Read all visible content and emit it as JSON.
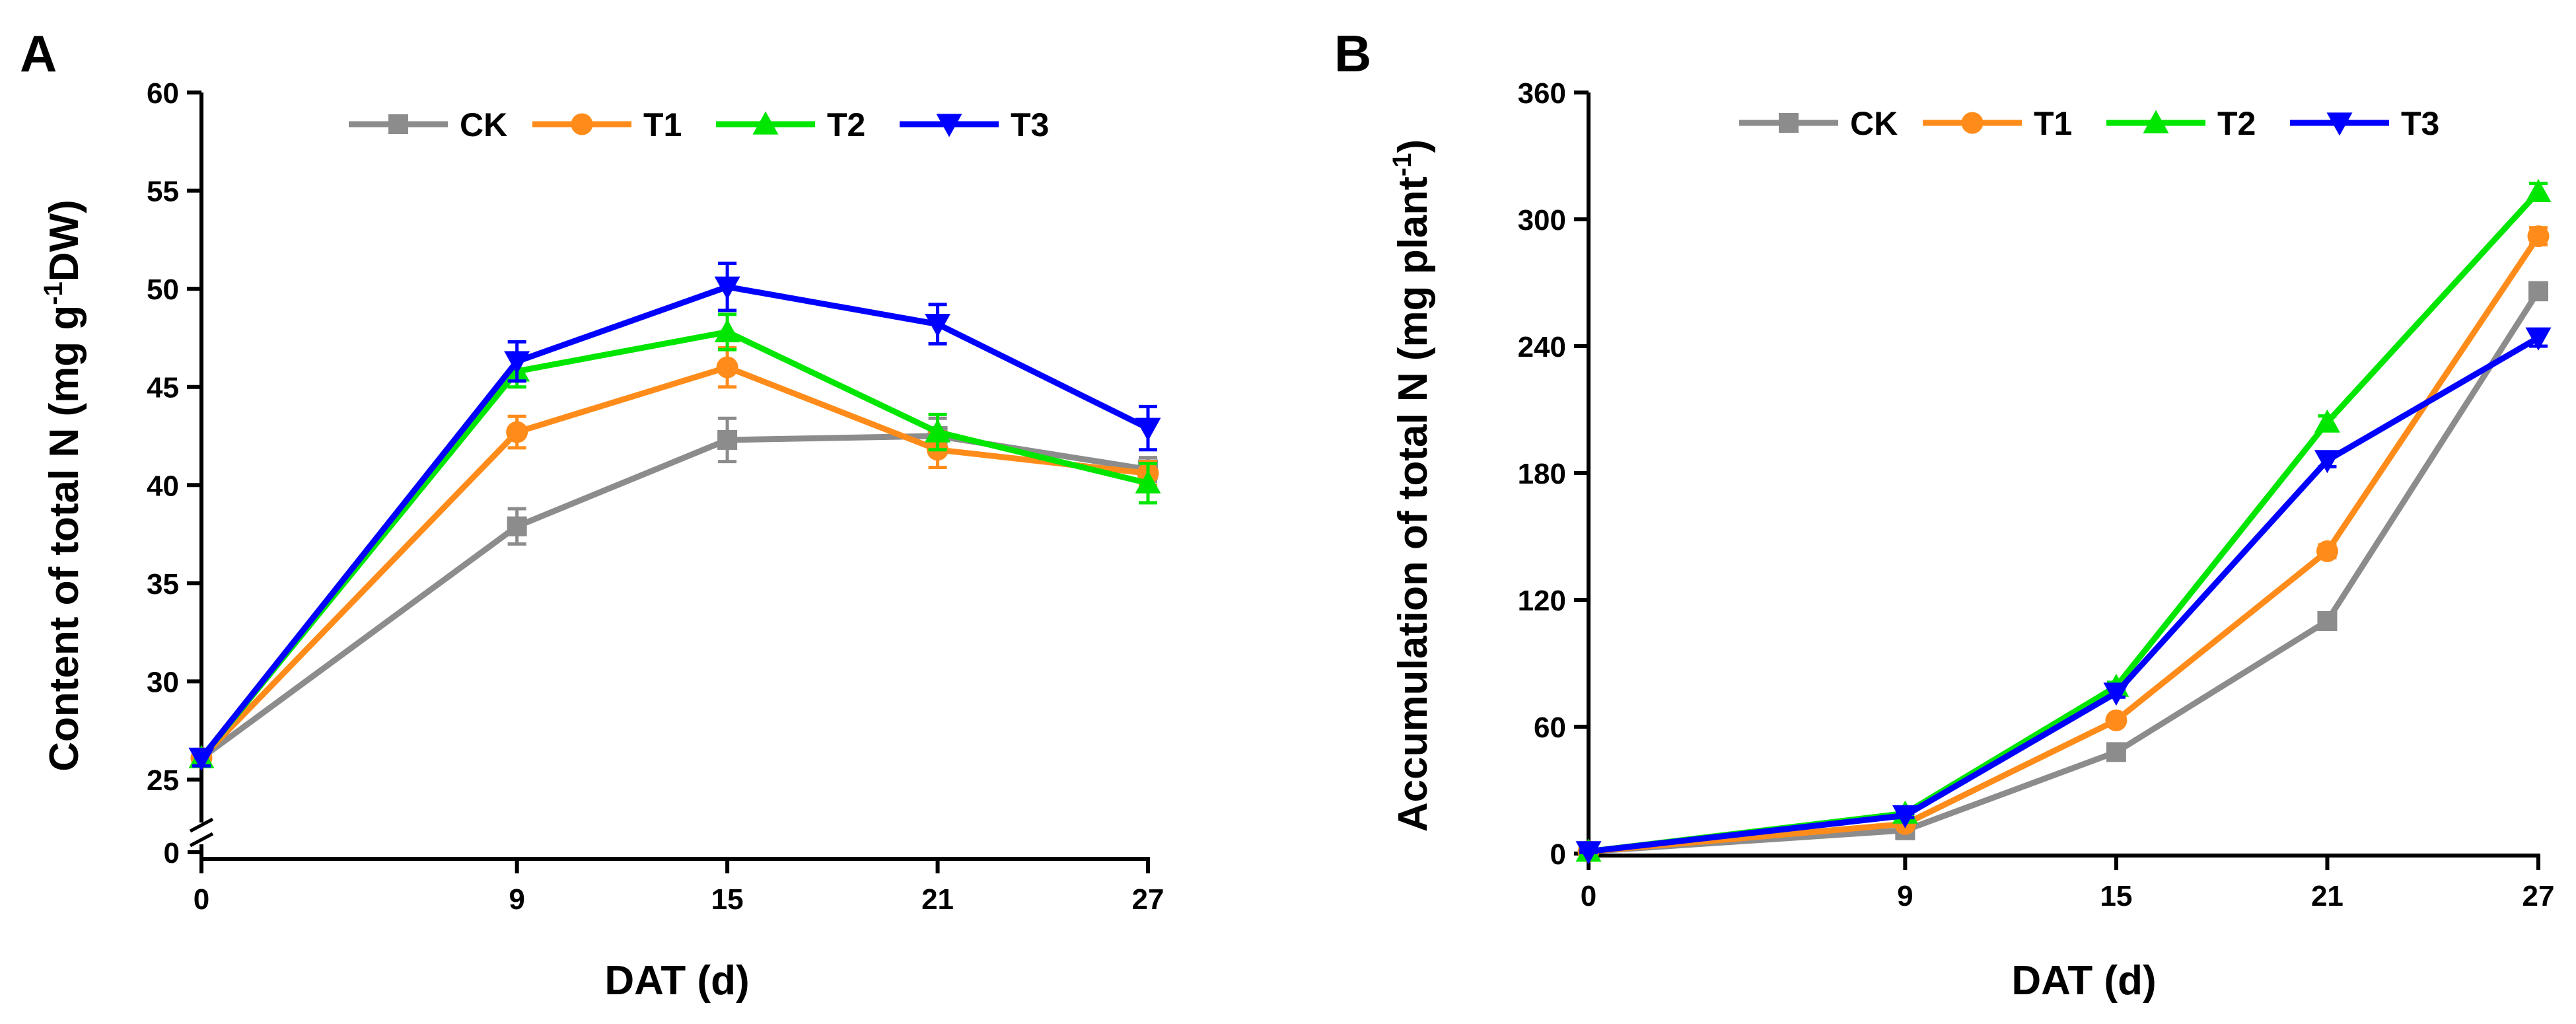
{
  "chart_data": [
    {
      "panel": "A",
      "type": "line",
      "x": [
        0,
        9,
        15,
        21,
        27
      ],
      "xticks": [
        "0",
        "9",
        "15",
        "21",
        "27"
      ],
      "xlim": [
        0,
        27
      ],
      "ylim": [
        25,
        60
      ],
      "yticks": [
        25,
        30,
        35,
        40,
        45,
        50,
        55,
        60
      ],
      "ytick_labels": [
        "25",
        "30",
        "35",
        "40",
        "45",
        "50",
        "55",
        "60"
      ],
      "axis_break": true,
      "ybreak_label": "0",
      "xlabel": "DAT (d)",
      "ylabel": {
        "pre": "Content of total N (mg g",
        "sup": "-1",
        "post": "DW)"
      },
      "legend_position": "top",
      "series": [
        {
          "name": "CK",
          "color": "#8c8c8c",
          "marker": "square",
          "values": [
            26.1,
            37.9,
            42.3,
            42.5,
            40.8
          ],
          "errors": [
            0.4,
            0.9,
            1.1,
            0.9,
            0.6
          ]
        },
        {
          "name": "T1",
          "color": "#ff8c1a",
          "marker": "circle",
          "values": [
            26.1,
            42.7,
            46.0,
            41.8,
            40.6
          ],
          "errors": [
            0.4,
            0.8,
            1.0,
            0.9,
            0.6
          ]
        },
        {
          "name": "T2",
          "color": "#00e600",
          "marker": "triangle-up",
          "values": [
            26.1,
            45.8,
            47.8,
            42.7,
            40.1
          ],
          "errors": [
            0.4,
            0.8,
            0.9,
            0.9,
            1.0
          ]
        },
        {
          "name": "T3",
          "color": "#0000ff",
          "marker": "triangle-down",
          "values": [
            26.1,
            46.3,
            50.1,
            48.2,
            42.9
          ],
          "errors": [
            0.4,
            1.0,
            1.2,
            1.0,
            1.1
          ]
        }
      ]
    },
    {
      "panel": "B",
      "type": "line",
      "x": [
        0,
        9,
        15,
        21,
        27
      ],
      "xticks": [
        "0",
        "9",
        "15",
        "21",
        "27"
      ],
      "xlim": [
        0,
        27
      ],
      "ylim": [
        0,
        360
      ],
      "yticks": [
        0,
        60,
        120,
        180,
        240,
        300,
        360
      ],
      "ytick_labels": [
        "0",
        "60",
        "120",
        "180",
        "240",
        "300",
        "360"
      ],
      "axis_break": false,
      "xlabel": "DAT (d)",
      "ylabel": {
        "pre": "Accumulation of total N (mg plant",
        "sup": "-1",
        "post": ")"
      },
      "legend_position": "top",
      "series": [
        {
          "name": "CK",
          "color": "#8c8c8c",
          "marker": "square",
          "values": [
            1,
            11,
            48,
            110,
            266
          ],
          "errors": [
            0.5,
            1,
            2,
            3,
            4
          ]
        },
        {
          "name": "T1",
          "color": "#ff8c1a",
          "marker": "circle",
          "values": [
            1,
            14,
            63,
            143,
            292
          ],
          "errors": [
            0.5,
            1,
            2,
            3,
            4
          ]
        },
        {
          "name": "T2",
          "color": "#00e600",
          "marker": "triangle-up",
          "values": [
            1,
            19,
            79,
            204,
            313
          ],
          "errors": [
            0.5,
            1,
            2,
            3,
            4
          ]
        },
        {
          "name": "T3",
          "color": "#0000ff",
          "marker": "triangle-down",
          "values": [
            1,
            18,
            76,
            186,
            244
          ],
          "errors": [
            0.5,
            1,
            2,
            3,
            4
          ]
        }
      ]
    }
  ]
}
